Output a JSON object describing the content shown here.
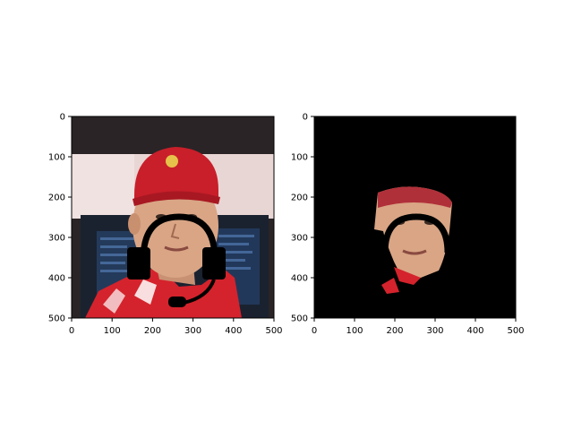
{
  "figure": {
    "background": "#ffffff",
    "panels": [
      {
        "name": "left-panel",
        "content": "face-photo-with-headset-overlay",
        "x_ticks": [
          "0",
          "100",
          "200",
          "300",
          "400",
          "500"
        ],
        "y_ticks": [
          "0",
          "100",
          "200",
          "300",
          "400",
          "500"
        ],
        "axis_range": {
          "x": [
            0,
            500
          ],
          "y": [
            0,
            500
          ]
        }
      },
      {
        "name": "right-panel",
        "content": "segmented-face-mask-on-black",
        "x_ticks": [
          "0",
          "100",
          "200",
          "300",
          "400",
          "500"
        ],
        "y_ticks": [
          "0",
          "100",
          "200",
          "300",
          "400",
          "500"
        ],
        "axis_range": {
          "x": [
            0,
            500
          ],
          "y": [
            0,
            500
          ]
        }
      }
    ],
    "colors": {
      "cap_red": "#c81f2a",
      "skin": "#d9a585",
      "suit_red": "#d4232c",
      "monitor_dark": "#1a2230",
      "window_light": "#e8d6d4",
      "headset": "#000000",
      "mask_background": "#000000"
    }
  }
}
